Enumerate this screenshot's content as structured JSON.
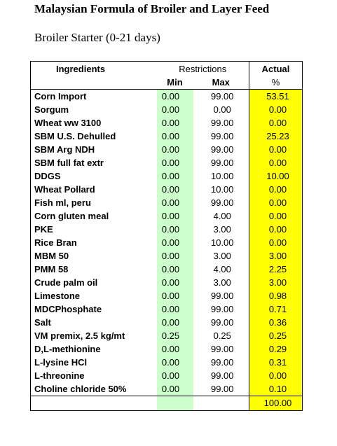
{
  "title": "Malaysian Formula of Broiler and Layer Feed",
  "subtitle": "Broiler Starter (0-21 days)",
  "headers": {
    "ingredients": "Ingredients",
    "restrictions": "Restrictions",
    "actual": "Actual",
    "min": "Min",
    "max": "Max",
    "percent": "%"
  },
  "rows": [
    {
      "ingredient": "Corn Import",
      "min": "0.00",
      "max": "99.00",
      "actual": "53.51"
    },
    {
      "ingredient": "Sorgum",
      "min": "0.00",
      "max": "0.00",
      "actual": "0.00"
    },
    {
      "ingredient": "Wheat ww 3100",
      "min": "0.00",
      "max": "99.00",
      "actual": "0.00"
    },
    {
      "ingredient": "SBM U.S. Dehulled",
      "min": "0.00",
      "max": "99.00",
      "actual": "25.23"
    },
    {
      "ingredient": "SBM Arg NDH",
      "min": "0.00",
      "max": "99.00",
      "actual": "0.00"
    },
    {
      "ingredient": "SBM full fat extr",
      "min": "0.00",
      "max": "99.00",
      "actual": "0.00"
    },
    {
      "ingredient": "DDGS",
      "min": "0.00",
      "max": "10.00",
      "actual": "10.00"
    },
    {
      "ingredient": "Wheat Pollard",
      "min": "0.00",
      "max": "10.00",
      "actual": "0.00"
    },
    {
      "ingredient": "Fish ml, peru",
      "min": "0.00",
      "max": "99.00",
      "actual": "0.00"
    },
    {
      "ingredient": "Corn gluten meal",
      "min": "0.00",
      "max": "4.00",
      "actual": "0.00"
    },
    {
      "ingredient": "PKE",
      "min": "0.00",
      "max": "3.00",
      "actual": "0.00"
    },
    {
      "ingredient": "Rice Bran",
      "min": "0.00",
      "max": "10.00",
      "actual": "0.00"
    },
    {
      "ingredient": "MBM 50",
      "min": "0.00",
      "max": "3.00",
      "actual": "3.00"
    },
    {
      "ingredient": "PMM 58",
      "min": "0.00",
      "max": "4.00",
      "actual": "2.25"
    },
    {
      "ingredient": "Crude palm oil",
      "min": "0.00",
      "max": "3.00",
      "actual": "3.00"
    },
    {
      "ingredient": "Limestone",
      "min": "0.00",
      "max": "99.00",
      "actual": "0.98"
    },
    {
      "ingredient": "MDCPhosphate",
      "min": "0.00",
      "max": "99.00",
      "actual": "0.71"
    },
    {
      "ingredient": "Salt",
      "min": "0.00",
      "max": "99.00",
      "actual": "0.36"
    },
    {
      "ingredient": "VM premix, 2.5 kg/mt",
      "min": "0.25",
      "max": "0.25",
      "actual": "0.25"
    },
    {
      "ingredient": "D,L-methionine",
      "min": "0.00",
      "max": "99.00",
      "actual": "0.29"
    },
    {
      "ingredient": "L-lysine HCl",
      "min": "0.00",
      "max": "99.00",
      "actual": "0.31"
    },
    {
      "ingredient": "L-threonine",
      "min": "0.00",
      "max": "99.00",
      "actual": "0.00"
    },
    {
      "ingredient": "Choline chloride 50%",
      "min": "0.00",
      "max": "99.00",
      "actual": "0.10"
    }
  ],
  "total": "100.00",
  "colors": {
    "min_column": "#ccffcc",
    "actual_column": "#ffff00",
    "border": "#000000"
  }
}
